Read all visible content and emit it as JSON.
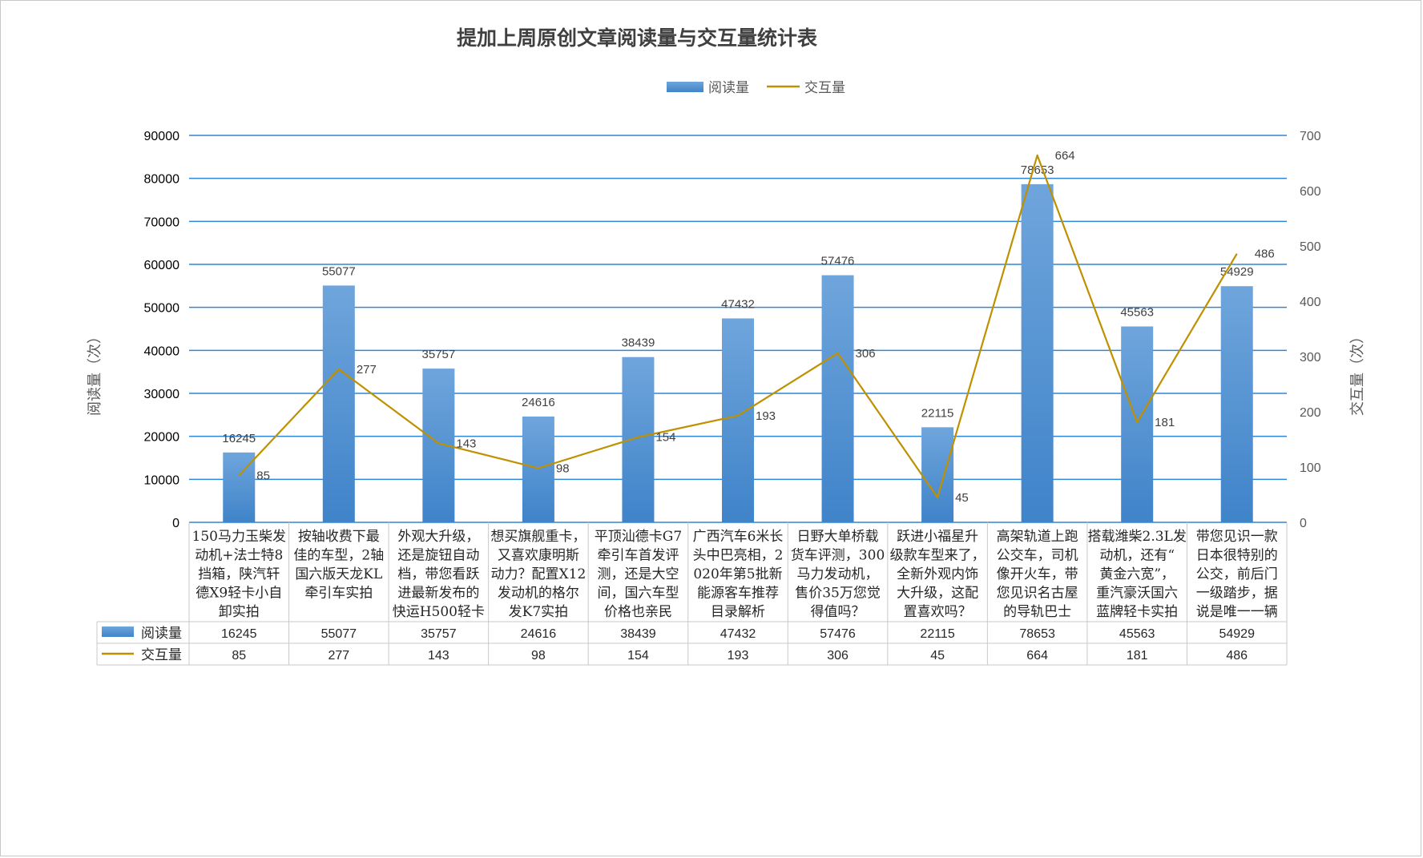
{
  "chart_data": {
    "type": "bar",
    "title": "提加上周原创文章阅读量与交互量统计表",
    "ylabel": "阅读量（次）",
    "y2label": "交互量（次）",
    "ylim": [
      0,
      90000
    ],
    "y2lim": [
      0,
      700
    ],
    "yticks": [
      "0",
      "10000",
      "20000",
      "30000",
      "40000",
      "50000",
      "60000",
      "70000",
      "80000",
      "90000"
    ],
    "y2ticks": [
      "0",
      "100",
      "200",
      "300",
      "400",
      "500",
      "600",
      "700"
    ],
    "grid": true,
    "legend_position": "top",
    "categories": [
      [
        "150马力玉柴发",
        "动机+法士特8",
        "挡箱，陕汽轩",
        "德X9轻卡小自",
        "卸实拍"
      ],
      [
        "按轴收费下最",
        "佳的车型，2轴",
        "国六版天龙KL",
        "牵引车实拍"
      ],
      [
        "外观大升级，",
        "还是旋钮自动",
        "档，带您看跃",
        "进最新发布的",
        "快运H500轻卡"
      ],
      [
        "想买旗舰重卡，",
        "又喜欢康明斯",
        "动力？配置X12",
        "发动机的格尔",
        "发K7实拍"
      ],
      [
        "平顶汕德卡G7",
        "牵引车首发评",
        "测，还是大空",
        "间，国六车型",
        "价格也亲民"
      ],
      [
        "广西汽车6米长",
        "头中巴亮相，2",
        "020年第5批新",
        "能源客车推荐",
        "目录解析"
      ],
      [
        "日野大单桥载",
        "货车评测，300",
        "马力发动机，",
        "售价35万您觉",
        "得值吗？"
      ],
      [
        "跃进小福星升",
        "级款车型来了，",
        "全新外观内饰",
        "大升级，这配",
        "置喜欢吗？"
      ],
      [
        "高架轨道上跑",
        "公交车，司机",
        "像开火车，带",
        "您见识名古屋",
        "的导轨巴士"
      ],
      [
        "搭载潍柴2.3L发",
        "动机，还有“",
        "黄金六宽”，",
        "重汽豪沃国六",
        "蓝牌轻卡实拍"
      ],
      [
        "带您见识一款",
        "日本很特别的",
        "公交，前后门",
        "一级踏步，据",
        "说是唯一一辆"
      ]
    ],
    "series": [
      {
        "name": "阅读量",
        "type": "bar",
        "axis": "left",
        "color": "#5b9bd5",
        "values": [
          16245,
          55077,
          35757,
          24616,
          38439,
          47432,
          57476,
          22115,
          78653,
          45563,
          54929
        ]
      },
      {
        "name": "交互量",
        "type": "line",
        "axis": "right",
        "color": "#bf9000",
        "values": [
          85,
          277,
          143,
          98,
          154,
          193,
          306,
          45,
          664,
          181,
          486
        ]
      }
    ]
  }
}
